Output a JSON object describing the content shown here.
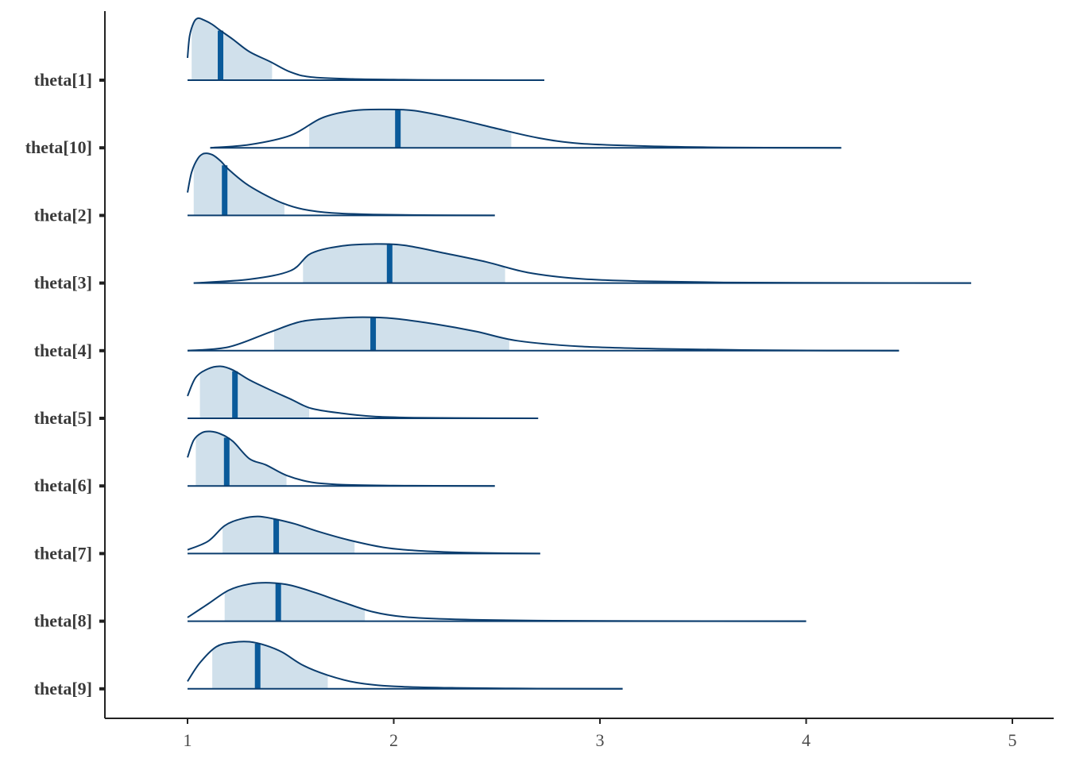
{
  "chart_data": {
    "type": "area",
    "chart_subtype": "ridgeline-density",
    "title": "",
    "xlabel": "",
    "ylabel": "",
    "xlim": [
      0.6,
      5.2
    ],
    "x_ticks": [
      1,
      2,
      3,
      4,
      5
    ],
    "x_tick_labels": [
      "1",
      "2",
      "3",
      "4",
      "5"
    ],
    "grid": false,
    "colors": {
      "outline": "#0b3d6e",
      "fill": "#d0e0eb",
      "median": "#0a5a9a",
      "axis": "#222222",
      "text": "#3a3a3a"
    },
    "series": [
      {
        "name": "theta[1]",
        "min": 1.0,
        "max": 2.73,
        "interval": [
          1.02,
          1.41
        ],
        "median": 1.16,
        "density": [
          [
            1.0,
            0.36
          ],
          [
            1.01,
            0.71
          ],
          [
            1.03,
            0.93
          ],
          [
            1.05,
            1.0
          ],
          [
            1.08,
            0.97
          ],
          [
            1.12,
            0.9
          ],
          [
            1.16,
            0.8
          ],
          [
            1.22,
            0.66
          ],
          [
            1.3,
            0.46
          ],
          [
            1.4,
            0.3
          ],
          [
            1.5,
            0.13
          ],
          [
            1.6,
            0.05
          ],
          [
            1.8,
            0.02
          ],
          [
            2.0,
            0.01
          ],
          [
            2.2,
            0.003
          ],
          [
            2.73,
            0.0
          ]
        ]
      },
      {
        "name": "theta[10]",
        "min": 1.11,
        "max": 4.17,
        "interval": [
          1.59,
          2.57
        ],
        "median": 2.02,
        "density": [
          [
            1.11,
            0.0
          ],
          [
            1.3,
            0.05
          ],
          [
            1.5,
            0.2
          ],
          [
            1.65,
            0.48
          ],
          [
            1.8,
            0.6
          ],
          [
            1.95,
            0.62
          ],
          [
            2.1,
            0.6
          ],
          [
            2.3,
            0.47
          ],
          [
            2.5,
            0.31
          ],
          [
            2.7,
            0.16
          ],
          [
            2.9,
            0.07
          ],
          [
            3.2,
            0.03
          ],
          [
            3.5,
            0.01
          ],
          [
            3.8,
            0.003
          ],
          [
            4.17,
            0.0
          ]
        ]
      },
      {
        "name": "theta[2]",
        "min": 1.0,
        "max": 2.49,
        "interval": [
          1.03,
          1.47
        ],
        "median": 1.18,
        "density": [
          [
            1.0,
            0.37
          ],
          [
            1.02,
            0.7
          ],
          [
            1.05,
            0.92
          ],
          [
            1.08,
            1.0
          ],
          [
            1.12,
            0.98
          ],
          [
            1.16,
            0.88
          ],
          [
            1.2,
            0.74
          ],
          [
            1.28,
            0.52
          ],
          [
            1.36,
            0.36
          ],
          [
            1.46,
            0.2
          ],
          [
            1.56,
            0.1
          ],
          [
            1.7,
            0.04
          ],
          [
            1.9,
            0.015
          ],
          [
            2.2,
            0.004
          ],
          [
            2.49,
            0.0
          ]
        ]
      },
      {
        "name": "theta[3]",
        "min": 1.03,
        "max": 4.8,
        "interval": [
          1.56,
          2.54
        ],
        "median": 1.98,
        "density": [
          [
            1.03,
            0.0
          ],
          [
            1.3,
            0.06
          ],
          [
            1.5,
            0.2
          ],
          [
            1.6,
            0.48
          ],
          [
            1.75,
            0.6
          ],
          [
            1.9,
            0.63
          ],
          [
            2.05,
            0.61
          ],
          [
            2.25,
            0.48
          ],
          [
            2.45,
            0.34
          ],
          [
            2.65,
            0.17
          ],
          [
            2.9,
            0.07
          ],
          [
            3.2,
            0.03
          ],
          [
            3.6,
            0.01
          ],
          [
            4.2,
            0.003
          ],
          [
            4.8,
            0.0
          ]
        ]
      },
      {
        "name": "theta[4]",
        "min": 1.0,
        "max": 4.45,
        "interval": [
          1.42,
          2.56
        ],
        "median": 1.9,
        "density": [
          [
            1.0,
            0.0
          ],
          [
            1.2,
            0.06
          ],
          [
            1.4,
            0.3
          ],
          [
            1.55,
            0.47
          ],
          [
            1.7,
            0.52
          ],
          [
            1.85,
            0.54
          ],
          [
            2.0,
            0.52
          ],
          [
            2.2,
            0.43
          ],
          [
            2.4,
            0.31
          ],
          [
            2.6,
            0.16
          ],
          [
            2.9,
            0.07
          ],
          [
            3.3,
            0.03
          ],
          [
            3.7,
            0.01
          ],
          [
            4.1,
            0.003
          ],
          [
            4.45,
            0.0
          ]
        ]
      },
      {
        "name": "theta[5]",
        "min": 1.0,
        "max": 2.7,
        "interval": [
          1.06,
          1.59
        ],
        "median": 1.23,
        "density": [
          [
            1.0,
            0.36
          ],
          [
            1.04,
            0.66
          ],
          [
            1.1,
            0.8
          ],
          [
            1.16,
            0.84
          ],
          [
            1.22,
            0.78
          ],
          [
            1.3,
            0.62
          ],
          [
            1.4,
            0.46
          ],
          [
            1.5,
            0.31
          ],
          [
            1.6,
            0.16
          ],
          [
            1.75,
            0.08
          ],
          [
            1.9,
            0.03
          ],
          [
            2.1,
            0.01
          ],
          [
            2.4,
            0.003
          ],
          [
            2.7,
            0.0
          ]
        ]
      },
      {
        "name": "theta[6]",
        "min": 1.0,
        "max": 2.49,
        "interval": [
          1.04,
          1.48
        ],
        "median": 1.19,
        "density": [
          [
            1.0,
            0.46
          ],
          [
            1.03,
            0.74
          ],
          [
            1.07,
            0.86
          ],
          [
            1.11,
            0.88
          ],
          [
            1.16,
            0.84
          ],
          [
            1.22,
            0.72
          ],
          [
            1.3,
            0.44
          ],
          [
            1.38,
            0.34
          ],
          [
            1.48,
            0.17
          ],
          [
            1.6,
            0.06
          ],
          [
            1.75,
            0.02
          ],
          [
            2.0,
            0.006
          ],
          [
            2.2,
            0.002
          ],
          [
            2.49,
            0.0
          ]
        ]
      },
      {
        "name": "theta[7]",
        "min": 1.0,
        "max": 2.71,
        "interval": [
          1.17,
          1.81
        ],
        "median": 1.43,
        "density": [
          [
            1.0,
            0.06
          ],
          [
            1.1,
            0.2
          ],
          [
            1.18,
            0.45
          ],
          [
            1.26,
            0.56
          ],
          [
            1.34,
            0.6
          ],
          [
            1.42,
            0.56
          ],
          [
            1.52,
            0.48
          ],
          [
            1.64,
            0.35
          ],
          [
            1.78,
            0.22
          ],
          [
            1.95,
            0.1
          ],
          [
            2.1,
            0.05
          ],
          [
            2.3,
            0.02
          ],
          [
            2.55,
            0.005
          ],
          [
            2.71,
            0.0
          ]
        ]
      },
      {
        "name": "theta[8]",
        "min": 1.0,
        "max": 4.0,
        "interval": [
          1.18,
          1.86
        ],
        "median": 1.44,
        "density": [
          [
            1.0,
            0.06
          ],
          [
            1.1,
            0.28
          ],
          [
            1.2,
            0.5
          ],
          [
            1.3,
            0.6
          ],
          [
            1.4,
            0.62
          ],
          [
            1.5,
            0.58
          ],
          [
            1.62,
            0.46
          ],
          [
            1.75,
            0.31
          ],
          [
            1.9,
            0.15
          ],
          [
            2.05,
            0.07
          ],
          [
            2.3,
            0.03
          ],
          [
            2.7,
            0.01
          ],
          [
            3.2,
            0.003
          ],
          [
            4.0,
            0.0
          ]
        ]
      },
      {
        "name": "theta[9]",
        "min": 1.0,
        "max": 3.11,
        "interval": [
          1.12,
          1.68
        ],
        "median": 1.34,
        "density": [
          [
            1.0,
            0.12
          ],
          [
            1.06,
            0.42
          ],
          [
            1.14,
            0.68
          ],
          [
            1.22,
            0.75
          ],
          [
            1.3,
            0.76
          ],
          [
            1.38,
            0.7
          ],
          [
            1.46,
            0.59
          ],
          [
            1.56,
            0.38
          ],
          [
            1.68,
            0.22
          ],
          [
            1.82,
            0.1
          ],
          [
            2.0,
            0.04
          ],
          [
            2.3,
            0.015
          ],
          [
            2.7,
            0.004
          ],
          [
            3.11,
            0.0
          ]
        ]
      }
    ]
  }
}
